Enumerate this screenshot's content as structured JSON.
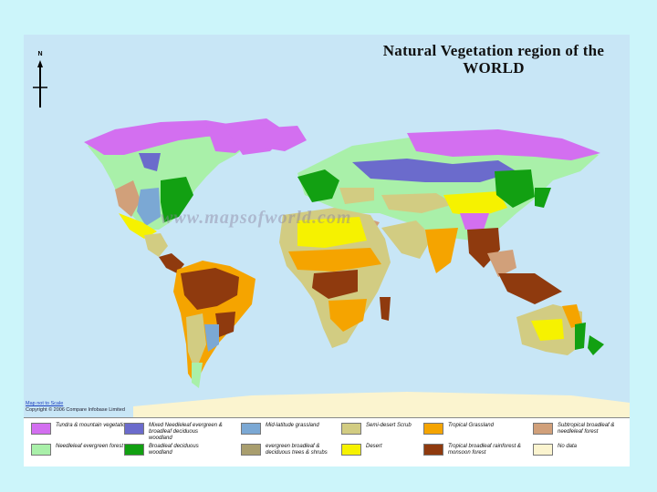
{
  "title": "Natural Vegetation region of the WORLD",
  "north_label": "N",
  "watermark": "www.mapsofworld.com",
  "notes": {
    "scale": "Map not to Scale",
    "copyright": "Copyright © 2006 Compare Infobase Limited"
  },
  "colors": {
    "ocean": "#c8e6f6",
    "tundra": "#d36ff0",
    "needleleaf": "#a9f0a9",
    "mixed": "#6b6bcc",
    "broadleaf": "#12a012",
    "mid_grass": "#7ba8d4",
    "evergreen_shrub": "#a99e6e",
    "semi_desert": "#d2cc82",
    "desert": "#f6f200",
    "tropical_grass": "#f5a400",
    "rainforest": "#8f3a0e",
    "subtropical": "#d1a07a",
    "no_data": "#fbf4cf"
  },
  "legend": [
    {
      "label": "Tundra & mountain vegetation",
      "color": "#d36ff0"
    },
    {
      "label": "Needleleaf evergreen forest",
      "color": "#a9f0a9"
    },
    {
      "label": "Mixed Needleleaf evergreen & broadleaf deciduous woodland",
      "color": "#6b6bcc"
    },
    {
      "label": "Broadleaf deciduous woodland",
      "color": "#12a012"
    },
    {
      "label": "Mid-latitude grassland",
      "color": "#7ba8d4"
    },
    {
      "label": "evergreen broadleaf & deciduous trees & shrubs",
      "color": "#a99e6e"
    },
    {
      "label": "Semi-desert Scrub",
      "color": "#d2cc82"
    },
    {
      "label": "Desert",
      "color": "#f6f200"
    },
    {
      "label": "Tropical Grassland",
      "color": "#f5a400"
    },
    {
      "label": "Tropical broadleaf rainforest & monsoon forest",
      "color": "#8f3a0e"
    },
    {
      "label": "Subtropical broadleaf & needleleaf forest",
      "color": "#d1a07a"
    },
    {
      "label": "No data",
      "color": "#fbf4cf"
    }
  ]
}
